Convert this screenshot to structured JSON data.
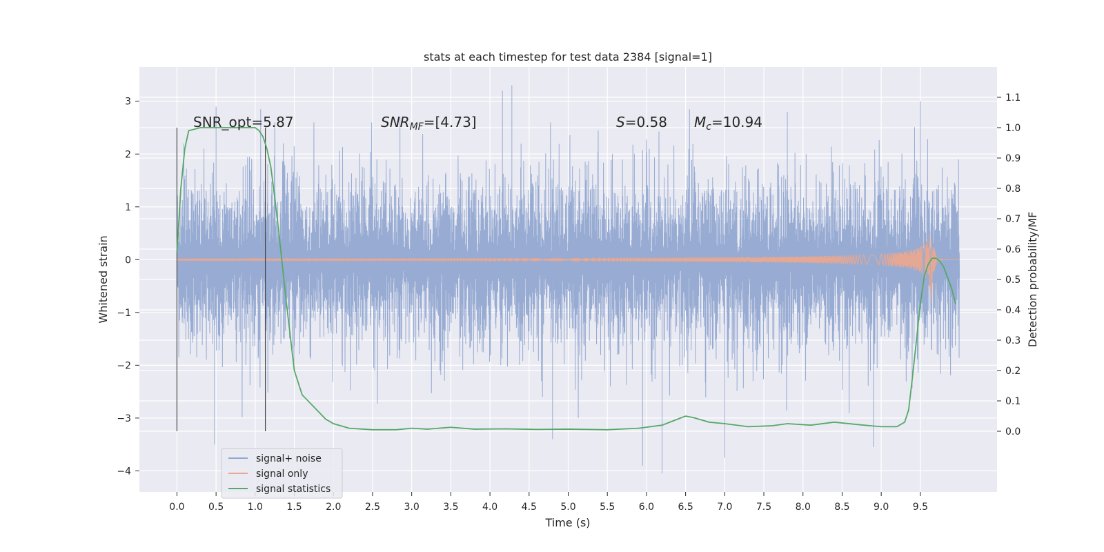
{
  "chart_data": {
    "type": "line",
    "title": "stats at each timestep for test data 2384 [signal=1]",
    "xlabel": "Time (s)",
    "ylabel_left": "Whitened strain",
    "ylabel_right": "Detection probability/MF",
    "x_ticks": [
      "0.0",
      "0.5",
      "1.0",
      "1.5",
      "2.0",
      "2.5",
      "3.0",
      "3.5",
      "4.0",
      "4.5",
      "5.0",
      "5.5",
      "6.0",
      "6.5",
      "7.0",
      "7.5",
      "8.0",
      "8.5",
      "9.0",
      "9.5"
    ],
    "y_left_ticks": [
      "3",
      "2",
      "1",
      "0",
      "−1",
      "−2",
      "−3",
      "−4"
    ],
    "y_right_ticks": [
      "1.1",
      "1.0",
      "0.9",
      "0.8",
      "0.7",
      "0.6",
      "0.5",
      "0.4",
      "0.3",
      "0.2",
      "0.1",
      "0.0"
    ],
    "xlim": [
      -0.48,
      10.48
    ],
    "ylim_left": [
      -4.4,
      3.65
    ],
    "ylim_right": [
      -0.2,
      1.2
    ],
    "grid": true,
    "legend_position": "lower-left",
    "annotations": {
      "snr_opt": "SNR_opt=5.87",
      "snr_mf_main": "SNR",
      "snr_mf_sub": "MF",
      "snr_mf_value": "=[4.73]",
      "s_var": "S",
      "s_value": "=0.58",
      "mc_var": "M",
      "mc_sub": "c",
      "mc_value": "=10.94"
    },
    "vertical_lines_x": [
      0.0,
      1.13
    ],
    "series": [
      {
        "name": "signal+ noise",
        "color": "#92a8d1",
        "axis": "left",
        "x_range": [
          0.0,
          10.0
        ],
        "envelope_typical": [
          -1.5,
          1.35
        ],
        "peaks": [
          [
            0.5,
            2.9
          ],
          [
            0.48,
            -3.5
          ],
          [
            1.07,
            2.85
          ],
          [
            4.16,
            3.2
          ],
          [
            4.28,
            3.3
          ],
          [
            4.8,
            -3.4
          ],
          [
            5.95,
            -3.9
          ],
          [
            6.2,
            -4.05
          ],
          [
            7.0,
            -3.75
          ],
          [
            8.9,
            -3.55
          ],
          [
            9.5,
            3.0
          ],
          [
            6.55,
            2.85
          ],
          [
            2.85,
            2.7
          ],
          [
            7.8,
            2.8
          ]
        ]
      },
      {
        "name": "signal only",
        "color": "#e8a890",
        "axis": "left",
        "x_range": [
          0.0,
          10.0
        ],
        "chirp_peak_time": 9.65,
        "chirp_peak_amplitude": 0.95
      },
      {
        "name": "signal statistics",
        "color": "#55a868",
        "axis": "right",
        "x": [
          0.0,
          0.05,
          0.1,
          0.15,
          0.3,
          0.5,
          0.7,
          0.9,
          1.0,
          1.05,
          1.1,
          1.15,
          1.2,
          1.25,
          1.3,
          1.35,
          1.4,
          1.45,
          1.5,
          1.6,
          1.75,
          1.9,
          2.0,
          2.2,
          2.5,
          2.8,
          3.0,
          3.2,
          3.5,
          3.8,
          4.2,
          4.6,
          5.0,
          5.5,
          5.9,
          6.2,
          6.4,
          6.5,
          6.6,
          6.8,
          7.0,
          7.3,
          7.6,
          7.8,
          8.1,
          8.4,
          8.7,
          9.0,
          9.2,
          9.3,
          9.35,
          9.4,
          9.45,
          9.5,
          9.55,
          9.6,
          9.65,
          9.7,
          9.75,
          9.8,
          9.9,
          9.95
        ],
        "y": [
          0.59,
          0.8,
          0.93,
          0.99,
          1.0,
          1.0,
          1.0,
          1.0,
          1.0,
          0.99,
          0.97,
          0.93,
          0.87,
          0.77,
          0.66,
          0.54,
          0.42,
          0.31,
          0.2,
          0.12,
          0.08,
          0.04,
          0.025,
          0.01,
          0.005,
          0.005,
          0.01,
          0.007,
          0.013,
          0.007,
          0.008,
          0.006,
          0.007,
          0.005,
          0.01,
          0.02,
          0.04,
          0.05,
          0.045,
          0.03,
          0.025,
          0.015,
          0.018,
          0.025,
          0.02,
          0.03,
          0.022,
          0.015,
          0.015,
          0.03,
          0.07,
          0.18,
          0.3,
          0.42,
          0.51,
          0.55,
          0.57,
          0.57,
          0.56,
          0.54,
          0.47,
          0.42
        ]
      }
    ]
  }
}
